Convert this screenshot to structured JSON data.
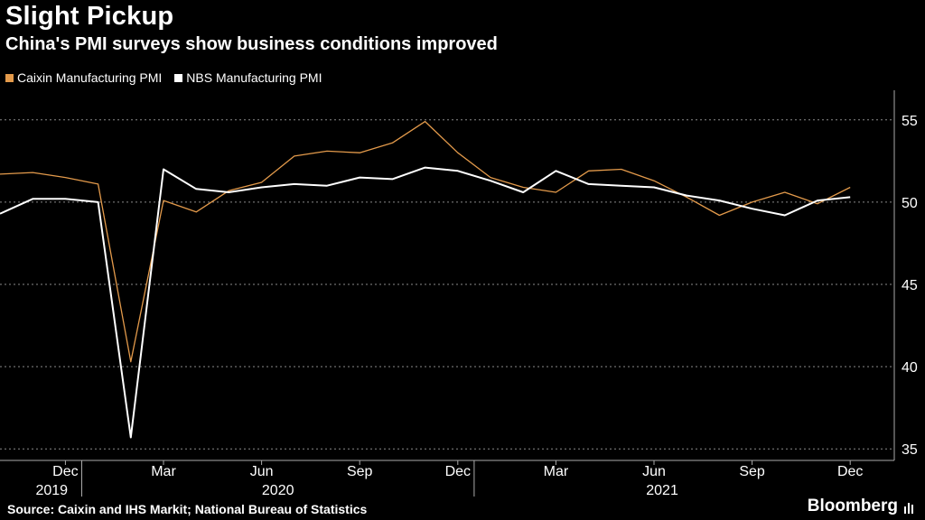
{
  "header": {
    "title": "Slight Pickup",
    "subtitle": "China's PMI surveys show business conditions improved"
  },
  "footer": {
    "source": "Source: Caixin and IHS Markit; National Bureau of Statistics",
    "brand": "Bloomberg"
  },
  "colors": {
    "caixin": "#E39A4B",
    "nbs": "#FFFFFF",
    "grid": "#8a8a8a"
  },
  "chart_data": {
    "type": "line",
    "title": "Slight Pickup",
    "subtitle": "China's PMI surveys show business conditions improved",
    "x": [
      "2019-10",
      "2019-11",
      "2019-12",
      "2020-01",
      "2020-02",
      "2020-03",
      "2020-04",
      "2020-05",
      "2020-06",
      "2020-07",
      "2020-08",
      "2020-09",
      "2020-10",
      "2020-11",
      "2020-12",
      "2021-01",
      "2021-02",
      "2021-03",
      "2021-04",
      "2021-05",
      "2021-06",
      "2021-07",
      "2021-08",
      "2021-09",
      "2021-10",
      "2021-11",
      "2021-12"
    ],
    "series": [
      {
        "name": "Caixin Manufacturing PMI",
        "color": "#E39A4B",
        "values": [
          51.7,
          51.8,
          51.5,
          51.1,
          40.3,
          50.1,
          49.4,
          50.7,
          51.2,
          52.8,
          53.1,
          53.0,
          53.6,
          54.9,
          53.0,
          51.5,
          50.9,
          50.6,
          51.9,
          52.0,
          51.3,
          50.3,
          49.2,
          50.0,
          50.6,
          49.9,
          50.9
        ]
      },
      {
        "name": "NBS Manufacturing PMI",
        "color": "#FFFFFF",
        "values": [
          49.3,
          50.2,
          50.2,
          50.0,
          35.7,
          52.0,
          50.8,
          50.6,
          50.9,
          51.1,
          51.0,
          51.5,
          51.4,
          52.1,
          51.9,
          51.3,
          50.6,
          51.9,
          51.1,
          51.0,
          50.9,
          50.4,
          50.1,
          49.6,
          49.2,
          50.1,
          50.3
        ]
      }
    ],
    "y_ticks": [
      35,
      40,
      45,
      50,
      55
    ],
    "ylim": [
      34.3,
      56.8
    ],
    "x_month_labels": [
      {
        "date": "2019-12",
        "label": "Dec"
      },
      {
        "date": "2020-03",
        "label": "Mar"
      },
      {
        "date": "2020-06",
        "label": "Jun"
      },
      {
        "date": "2020-09",
        "label": "Sep"
      },
      {
        "date": "2020-12",
        "label": "Dec"
      },
      {
        "date": "2021-03",
        "label": "Mar"
      },
      {
        "date": "2021-06",
        "label": "Jun"
      },
      {
        "date": "2021-09",
        "label": "Sep"
      },
      {
        "date": "2021-12",
        "label": "Dec"
      }
    ],
    "x_year_labels": [
      "2019",
      "2020",
      "2021"
    ],
    "grid": true,
    "legend_position": "top-left"
  }
}
